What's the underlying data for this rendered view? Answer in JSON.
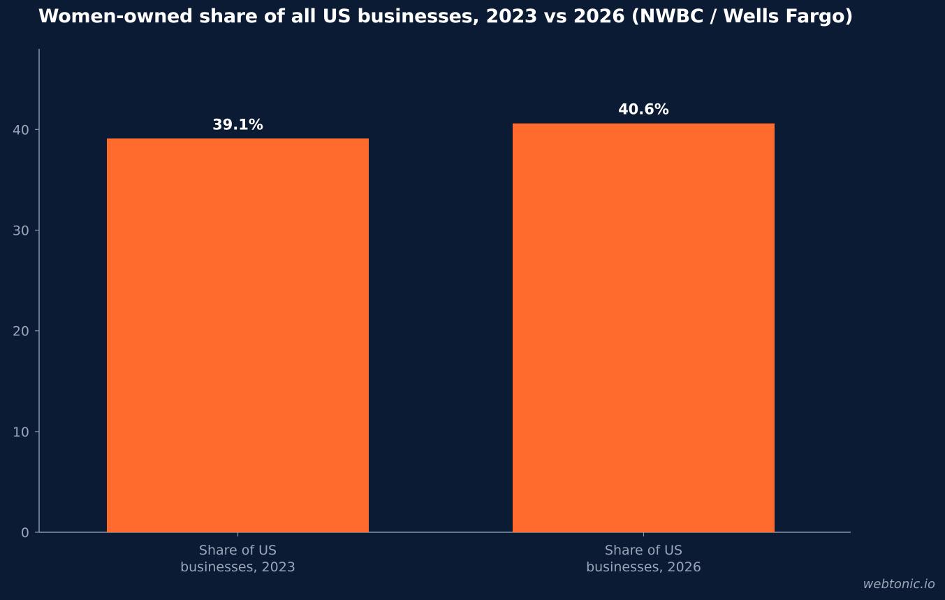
{
  "chart_data": {
    "type": "bar",
    "title": "Women-owned share of all US businesses, 2023 vs 2026 (NWBC / Wells Fargo)",
    "categories": [
      [
        "Share of US",
        "businesses, 2023"
      ],
      [
        "Share of US",
        "businesses, 2026"
      ]
    ],
    "values": [
      39.1,
      40.6
    ],
    "data_labels": [
      "39.1%",
      "40.6%"
    ],
    "xlabel": "",
    "ylabel": "",
    "ylim": [
      0,
      48
    ],
    "yticks": [
      0,
      10,
      20,
      30,
      40
    ],
    "grid": false,
    "legend": "none",
    "colors": {
      "background": "#0b1b34",
      "bar": "#ff6b2d",
      "axis": "#8a96a8",
      "tick_label": "#9aa6b8",
      "data_label": "#ffffff"
    }
  },
  "watermark": "webtonic.io"
}
